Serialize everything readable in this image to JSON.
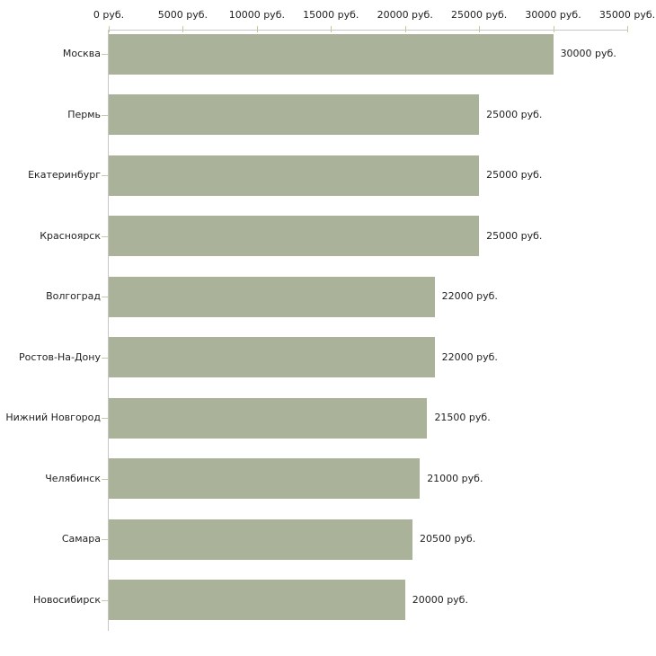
{
  "chart_data": {
    "type": "bar",
    "orientation": "horizontal",
    "title": "",
    "xlabel": "",
    "ylabel": "",
    "unit": "руб.",
    "categories": [
      "Москва",
      "Пермь",
      "Екатеринбург",
      "Красноярск",
      "Волгоград",
      "Ростов-На-Дону",
      "Нижний Новгород",
      "Челябинск",
      "Самара",
      "Новосибирск"
    ],
    "values": [
      30000,
      25000,
      25000,
      25000,
      22000,
      22000,
      21500,
      21000,
      20500,
      20000
    ],
    "value_labels": [
      "30000 руб.",
      "25000 руб.",
      "25000 руб.",
      "25000 руб.",
      "22000 руб.",
      "22000 руб.",
      "21500 руб.",
      "21000 руб.",
      "20500 руб.",
      "20000 руб."
    ],
    "x_axis": {
      "position": "top",
      "min": 0,
      "max": 35000,
      "ticks": [
        0,
        5000,
        10000,
        15000,
        20000,
        25000,
        30000,
        35000
      ],
      "tick_labels": [
        "0 руб.",
        "5000 руб.",
        "10000 руб.",
        "15000 руб.",
        "20000 руб.",
        "25000 руб.",
        "30000 руб.",
        "35000 руб."
      ]
    },
    "legend": "none",
    "grid": "off",
    "colors": {
      "bar": "#abb29a",
      "axis_line": "#c6c6c6",
      "x_tick": "#c6c68f",
      "y_tick": "#c9c9a4",
      "text": "#1f1f1f",
      "background": "#ffffff"
    }
  }
}
